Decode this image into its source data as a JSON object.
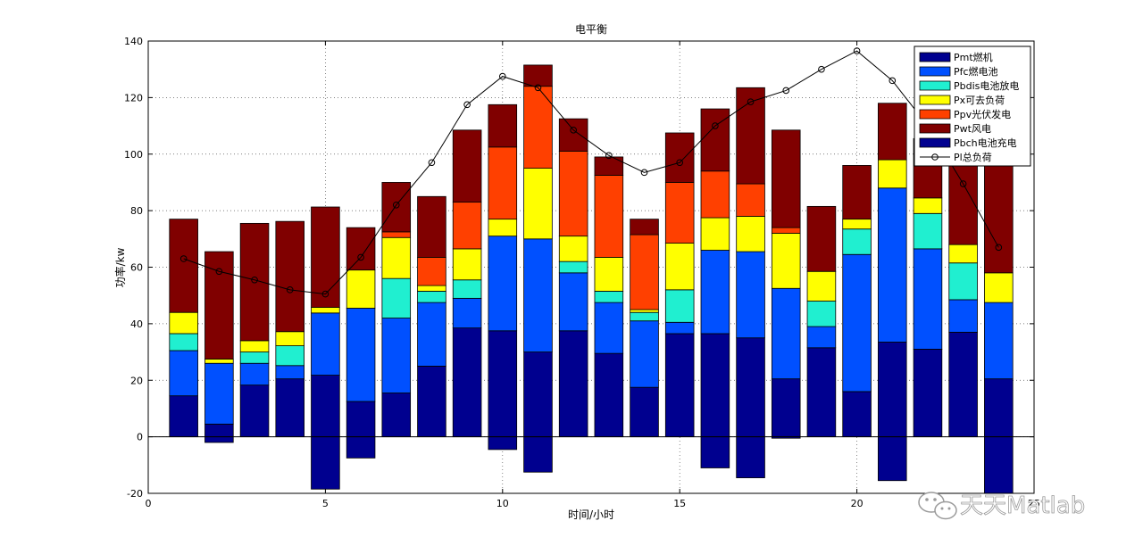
{
  "chart_data": {
    "type": "bar",
    "stacked": true,
    "title": "电平衡",
    "xlabel": "时间/小时",
    "ylabel": "功率/kw",
    "xlim": [
      0,
      25
    ],
    "ylim": [
      -20,
      140
    ],
    "xticks": [
      0,
      5,
      10,
      15,
      20,
      25
    ],
    "yticks": [
      -20,
      0,
      20,
      40,
      60,
      80,
      100,
      120,
      140
    ],
    "grid": true,
    "legend_position": "top-right",
    "x": [
      1,
      2,
      3,
      4,
      5,
      6,
      7,
      8,
      9,
      10,
      11,
      12,
      13,
      14,
      15,
      16,
      17,
      18,
      19,
      20,
      21,
      22,
      23,
      24
    ],
    "series": [
      {
        "name": "Pmt燃机",
        "color": "#00008f",
        "values": [
          14.5,
          4.5,
          18.3,
          20.5,
          21.8,
          12.5,
          15.5,
          25,
          38.5,
          37.5,
          30,
          37.5,
          29.5,
          17.5,
          36.5,
          36.5,
          35,
          20.5,
          31.5,
          16,
          33.5,
          31,
          37,
          20.5
        ]
      },
      {
        "name": "Pfc燃电池",
        "color": "#0050ff",
        "values": [
          16,
          21.5,
          7.7,
          4.7,
          22,
          33,
          26.5,
          22.5,
          10.5,
          33.5,
          40,
          20.5,
          18,
          23.5,
          4,
          29.5,
          30.5,
          32,
          7.5,
          48.5,
          54.5,
          35.5,
          11.5,
          27
        ]
      },
      {
        "name": "Pbdis电池放电",
        "color": "#20efd0",
        "values": [
          6,
          0,
          4,
          7,
          0,
          0,
          14,
          4,
          6.5,
          0,
          0,
          4,
          4,
          3,
          11.5,
          0,
          0,
          0,
          9,
          9,
          0,
          12.5,
          13,
          0
        ]
      },
      {
        "name": "Px可去负荷",
        "color": "#ffff00",
        "values": [
          7.5,
          1.5,
          4,
          5,
          2,
          13.5,
          14.5,
          2,
          11,
          6,
          25,
          9,
          12,
          1,
          16.5,
          11.5,
          12.5,
          19.5,
          10.5,
          3.5,
          10,
          5.5,
          6.5,
          10.5
        ]
      },
      {
        "name": "Ppv光伏发电",
        "color": "#ff4000",
        "values": [
          0,
          0,
          0,
          0,
          0,
          0,
          2,
          10,
          16.5,
          25.5,
          29,
          30,
          29,
          26.5,
          21.5,
          16.5,
          11.5,
          2,
          0,
          0,
          0,
          0,
          0,
          0
        ]
      },
      {
        "name": "Pwt风电",
        "color": "#800000",
        "values": [
          33,
          38,
          41.5,
          39,
          35.5,
          15,
          17.5,
          21.5,
          25.5,
          15,
          7.5,
          11.5,
          6.5,
          5.5,
          17.5,
          22,
          34,
          34.5,
          23,
          19,
          20,
          21,
          30,
          39
        ]
      },
      {
        "name": "Pbch电池充电",
        "color": "#00008f",
        "values": [
          0,
          -2,
          0,
          0,
          -18.5,
          -7.5,
          0,
          0,
          0,
          -4.5,
          -12.5,
          0,
          0,
          0,
          0,
          -11,
          -14.5,
          -0.5,
          0,
          0,
          -15.5,
          0,
          0,
          -20
        ]
      }
    ],
    "load": {
      "name": "Pl总负荷",
      "color": "#000000",
      "values": [
        63,
        58.5,
        55.5,
        52,
        50.5,
        63.5,
        82,
        97,
        117.5,
        127.5,
        123.5,
        108.5,
        99.5,
        93.5,
        97,
        110,
        118.5,
        122.5,
        130,
        136.5,
        126,
        110,
        89.5,
        67
      ]
    }
  },
  "watermark": {
    "text": "天天Matlab"
  }
}
